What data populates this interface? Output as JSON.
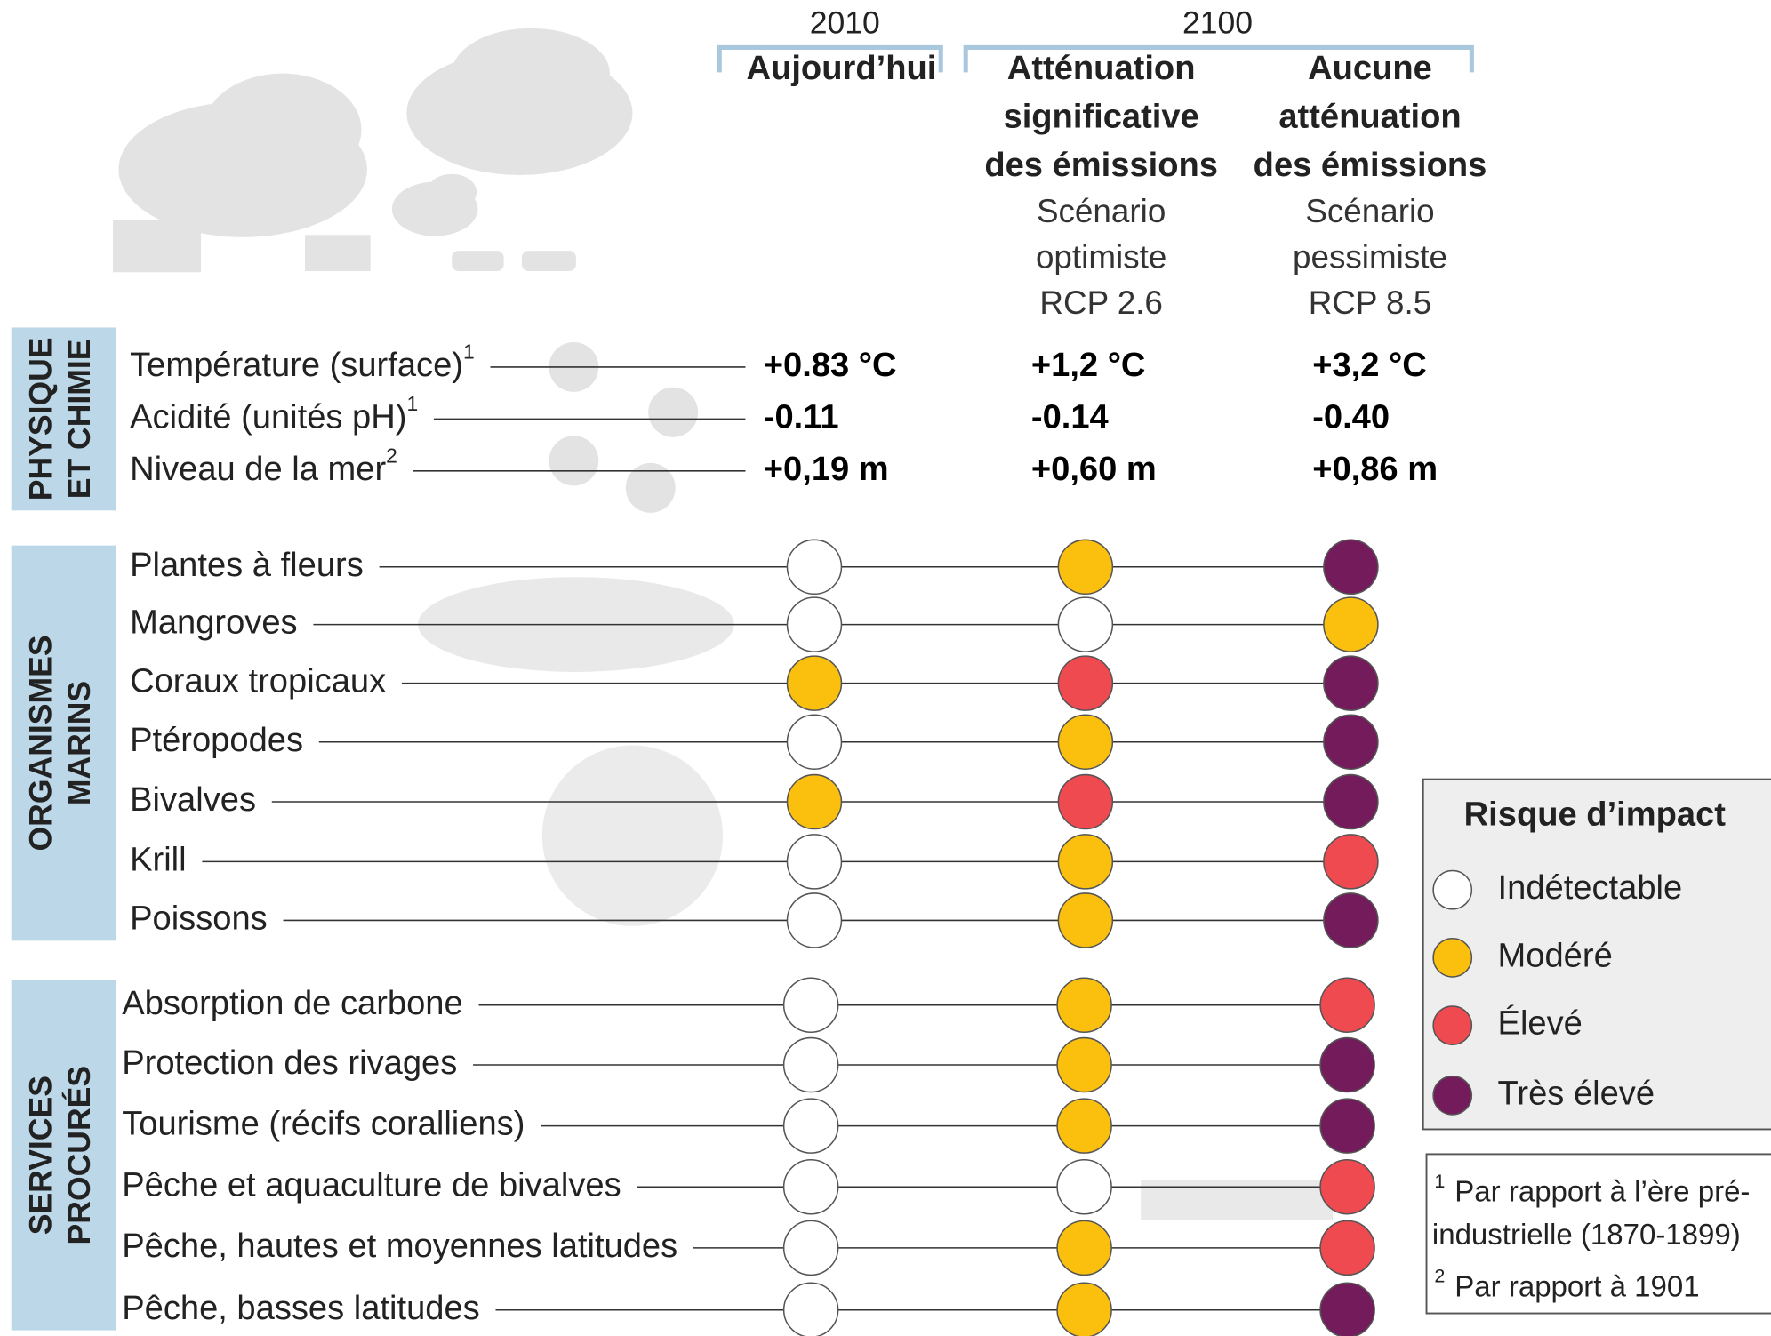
{
  "header": {
    "years": [
      "2010",
      "2100"
    ],
    "columns": [
      {
        "title": [
          "Aujourd’hui"
        ],
        "subtitle": []
      },
      {
        "title": [
          "Atténuation",
          "significative",
          "des émissions"
        ],
        "subtitle": [
          "Scénario",
          "optimiste",
          "RCP 2.6"
        ]
      },
      {
        "title": [
          "Aucune",
          "atténuation",
          "des émissions"
        ],
        "subtitle": [
          "Scénario",
          "pessimiste",
          "RCP 8.5"
        ]
      }
    ]
  },
  "physical": {
    "section": [
      "PHYSIQUE",
      "ET CHIMIE"
    ],
    "rows": [
      {
        "label": "Température (surface)",
        "note": "1",
        "values": [
          "+0.83 °C",
          "+1,2 °C",
          "+3,2 °C"
        ]
      },
      {
        "label": "Acidité (unités pH)",
        "note": "1",
        "values": [
          "-0.11",
          "-0.14",
          "-0.40"
        ]
      },
      {
        "label": "Niveau de la mer",
        "note": "2",
        "values": [
          "+0,19 m",
          "+0,60 m",
          "+0,86 m"
        ]
      }
    ]
  },
  "groups": [
    {
      "section": [
        "ORGANISMES",
        "MARINS"
      ],
      "rows": [
        {
          "label": "Plantes à fleurs",
          "risks": [
            0,
            1,
            3
          ]
        },
        {
          "label": "Mangroves",
          "risks": [
            0,
            0,
            1
          ]
        },
        {
          "label": "Coraux tropicaux",
          "risks": [
            1,
            2,
            3
          ]
        },
        {
          "label": "Ptéropodes",
          "risks": [
            0,
            1,
            3
          ]
        },
        {
          "label": "Bivalves",
          "risks": [
            1,
            2,
            3
          ]
        },
        {
          "label": "Krill",
          "risks": [
            0,
            1,
            2
          ]
        },
        {
          "label": "Poissons",
          "risks": [
            0,
            1,
            3
          ]
        }
      ]
    },
    {
      "section": [
        "SERVICES",
        "PROCURÉS"
      ],
      "rows": [
        {
          "label": "Absorption de carbone",
          "risks": [
            0,
            1,
            2
          ]
        },
        {
          "label": "Protection des rivages",
          "risks": [
            0,
            1,
            3
          ]
        },
        {
          "label": "Tourisme (récifs coralliens)",
          "risks": [
            0,
            1,
            3
          ]
        },
        {
          "label": "Pêche et aquaculture de bivalves",
          "risks": [
            0,
            0,
            2
          ]
        },
        {
          "label": "Pêche, hautes et moyennes latitudes",
          "risks": [
            0,
            1,
            2
          ]
        },
        {
          "label": "Pêche, basses latitudes",
          "risks": [
            0,
            1,
            3
          ]
        }
      ]
    }
  ],
  "legend": {
    "title": "Risque d’impact",
    "items": [
      {
        "name": "Indétectable",
        "color": "#ffffff"
      },
      {
        "name": "Modéré",
        "color": "#fbbf0e"
      },
      {
        "name": "Élevé",
        "color": "#ee4a50"
      },
      {
        "name": "Très élevé",
        "color": "#741b5c"
      }
    ]
  },
  "notes": [
    {
      "marker": "1",
      "lines": [
        "Par rapport à l’ère pré-",
        "industrielle (1870-1899)"
      ]
    },
    {
      "marker": "2",
      "lines": [
        "Par rapport à 1901"
      ]
    }
  ]
}
